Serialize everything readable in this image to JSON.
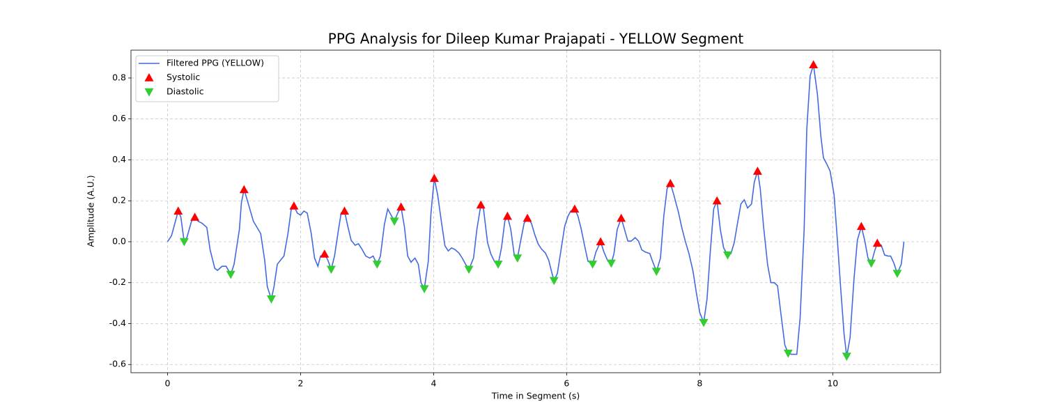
{
  "chart_data": {
    "type": "line",
    "title": "PPG Analysis for Dileep Kumar Prajapati - YELLOW Segment",
    "x_label": "Time in Segment (s)",
    "y_label": "Amplitude (A.U.)",
    "xlim": [
      -0.55,
      11.62
    ],
    "ylim": [
      -0.64,
      0.936
    ],
    "xticks": [
      0,
      2,
      4,
      6,
      8,
      10
    ],
    "yticks": [
      -0.6,
      -0.4,
      -0.2,
      {
        "value": 0,
        "label": "0.0"
      },
      0.2,
      0.4,
      0.6,
      0.8
    ],
    "grid": true,
    "legend": "upper left",
    "series": [
      {
        "name": "Filtered PPG (YELLOW)",
        "kind": "line",
        "color": "#4169e1",
        "x": [
          0,
          0.06,
          0.16,
          0.2,
          0.25,
          0.29,
          0.36,
          0.41,
          0.46,
          0.52,
          0.59,
          0.64,
          0.71,
          0.75,
          0.82,
          0.88,
          0.95,
          1.0,
          1.08,
          1.11,
          1.15,
          1.21,
          1.29,
          1.4,
          1.46,
          1.5,
          1.56,
          1.6,
          1.65,
          1.71,
          1.75,
          1.81,
          1.86,
          1.9,
          1.95,
          2.0,
          2.05,
          2.1,
          2.16,
          2.21,
          2.26,
          2.3,
          2.36,
          2.41,
          2.46,
          2.51,
          2.57,
          2.61,
          2.66,
          2.71,
          2.76,
          2.82,
          2.87,
          2.92,
          2.98,
          3.04,
          3.09,
          3.15,
          3.2,
          3.26,
          3.31,
          3.36,
          3.41,
          3.46,
          3.51,
          3.56,
          3.61,
          3.66,
          3.72,
          3.77,
          3.81,
          3.86,
          3.92,
          3.96,
          4.01,
          4.06,
          4.12,
          4.17,
          4.22,
          4.27,
          4.32,
          4.38,
          4.43,
          4.48,
          4.53,
          4.6,
          4.65,
          4.71,
          4.75,
          4.81,
          4.86,
          4.92,
          4.97,
          5.02,
          5.07,
          5.11,
          5.16,
          5.21,
          5.26,
          5.31,
          5.36,
          5.41,
          5.47,
          5.52,
          5.57,
          5.62,
          5.68,
          5.73,
          5.78,
          5.81,
          5.86,
          5.92,
          5.97,
          6.02,
          6.06,
          6.12,
          6.17,
          6.22,
          6.27,
          6.32,
          6.39,
          6.44,
          6.51,
          6.56,
          6.62,
          6.67,
          6.71,
          6.76,
          6.82,
          6.87,
          6.92,
          6.97,
          7.03,
          7.08,
          7.13,
          7.18,
          7.25,
          7.29,
          7.35,
          7.41,
          7.46,
          7.51,
          7.56,
          7.61,
          7.68,
          7.73,
          7.78,
          7.84,
          7.9,
          7.95,
          8.0,
          8.06,
          8.11,
          8.16,
          8.21,
          8.26,
          8.31,
          8.36,
          8.42,
          8.47,
          8.52,
          8.56,
          8.62,
          8.67,
          8.72,
          8.78,
          8.82,
          8.87,
          8.91,
          8.96,
          9.02,
          9.07,
          9.12,
          9.17,
          9.22,
          9.28,
          9.33,
          9.38,
          9.46,
          9.51,
          9.57,
          9.61,
          9.66,
          9.71,
          9.77,
          9.82,
          9.86,
          9.91,
          9.96,
          10.02,
          10.07,
          10.12,
          10.17,
          10.21,
          10.26,
          10.32,
          10.37,
          10.43,
          10.48,
          10.53,
          10.58,
          10.63,
          10.67,
          10.73,
          10.78,
          10.83,
          10.87,
          10.92,
          10.97,
          11.03,
          11.07
        ],
        "values": [
          0,
          0.03,
          0.15,
          0.12,
          0.0,
          0.02,
          0.1,
          0.12,
          0.1,
          0.09,
          0.07,
          -0.04,
          -0.13,
          -0.14,
          -0.12,
          -0.12,
          -0.16,
          -0.11,
          0.06,
          0.19,
          0.255,
          0.19,
          0.1,
          0.04,
          -0.09,
          -0.22,
          -0.28,
          -0.22,
          -0.11,
          -0.085,
          -0.07,
          0.04,
          0.16,
          0.175,
          0.14,
          0.13,
          0.15,
          0.14,
          0.04,
          -0.08,
          -0.12,
          -0.07,
          -0.06,
          -0.09,
          -0.135,
          -0.07,
          0.06,
          0.14,
          0.15,
          0.075,
          0.007,
          -0.017,
          -0.01,
          -0.035,
          -0.07,
          -0.08,
          -0.07,
          -0.11,
          -0.07,
          0.085,
          0.16,
          0.13,
          0.1,
          0.14,
          0.17,
          0.075,
          -0.07,
          -0.1,
          -0.08,
          -0.11,
          -0.2,
          -0.23,
          -0.095,
          0.14,
          0.31,
          0.23,
          0.09,
          -0.02,
          -0.045,
          -0.03,
          -0.038,
          -0.055,
          -0.08,
          -0.11,
          -0.135,
          -0.08,
          0.06,
          0.18,
          0.16,
          -0.003,
          -0.06,
          -0.1,
          -0.11,
          -0.03,
          0.1,
          0.125,
          0.06,
          -0.06,
          -0.08,
          0.007,
          0.09,
          0.115,
          0.09,
          0.035,
          -0.01,
          -0.035,
          -0.055,
          -0.09,
          -0.155,
          -0.19,
          -0.155,
          -0.03,
          0.075,
          0.125,
          0.15,
          0.16,
          0.125,
          0.06,
          -0.02,
          -0.095,
          -0.11,
          -0.05,
          0.0,
          -0.05,
          -0.095,
          -0.105,
          -0.06,
          0.06,
          0.115,
          0.06,
          0.003,
          0.003,
          0.02,
          0.003,
          -0.04,
          -0.05,
          -0.058,
          -0.095,
          -0.145,
          -0.08,
          0.125,
          0.26,
          0.285,
          0.23,
          0.145,
          0.07,
          0.007,
          -0.06,
          -0.145,
          -0.25,
          -0.345,
          -0.395,
          -0.28,
          -0.045,
          0.16,
          0.2,
          0.06,
          -0.03,
          -0.065,
          -0.058,
          -0.003,
          0.075,
          0.185,
          0.205,
          0.165,
          0.185,
          0.29,
          0.345,
          0.26,
          0.075,
          -0.11,
          -0.2,
          -0.2,
          -0.215,
          -0.35,
          -0.505,
          -0.545,
          -0.55,
          -0.55,
          -0.37,
          0.06,
          0.55,
          0.81,
          0.865,
          0.72,
          0.52,
          0.41,
          0.38,
          0.345,
          0.23,
          0.007,
          -0.23,
          -0.45,
          -0.56,
          -0.47,
          -0.18,
          0.007,
          0.075,
          0.007,
          -0.08,
          -0.105,
          -0.045,
          -0.007,
          -0.017,
          -0.065,
          -0.07,
          -0.07,
          -0.105,
          -0.155,
          -0.11,
          0.0
        ]
      },
      {
        "name": "Systolic",
        "kind": "marker",
        "marker": "triangle-up",
        "color": "#ff0000",
        "x": [
          0.16,
          0.41,
          1.15,
          1.9,
          2.36,
          2.66,
          3.51,
          4.01,
          4.71,
          5.11,
          5.41,
          6.12,
          6.51,
          6.82,
          7.56,
          8.26,
          8.87,
          9.71,
          10.43,
          10.67
        ],
        "values": [
          0.15,
          0.12,
          0.255,
          0.175,
          -0.06,
          0.15,
          0.17,
          0.31,
          0.18,
          0.125,
          0.115,
          0.16,
          0.0,
          0.115,
          0.285,
          0.2,
          0.345,
          0.865,
          0.075,
          -0.007
        ]
      },
      {
        "name": "Diastolic",
        "kind": "marker",
        "marker": "triangle-down",
        "color": "#32cd32",
        "x": [
          0.25,
          0.95,
          1.56,
          2.46,
          3.15,
          3.41,
          3.86,
          4.53,
          4.97,
          5.26,
          5.81,
          6.39,
          6.67,
          7.35,
          8.06,
          8.42,
          9.33,
          10.21,
          10.58,
          10.97
        ],
        "values": [
          0.0,
          -0.16,
          -0.28,
          -0.135,
          -0.11,
          0.1,
          -0.23,
          -0.135,
          -0.11,
          -0.08,
          -0.19,
          -0.11,
          -0.105,
          -0.145,
          -0.395,
          -0.065,
          -0.545,
          -0.56,
          -0.105,
          -0.155
        ]
      }
    ]
  }
}
